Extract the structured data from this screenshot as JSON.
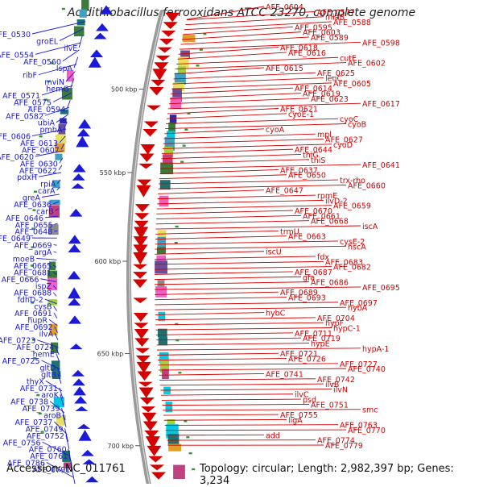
{
  "map": {
    "title": "Acidithiobacillus ferrooxidans ATCC 23270, complete genome",
    "accession": "Accession: NC_011761",
    "summary": "Topology: circular; Length: 2,982,397 bp; Genes: 3,234",
    "colors": {
      "forward": "#d40000",
      "reverse": "#1a1ad8",
      "backbone": "#9a9a9a",
      "highlight": "#ff88ff"
    },
    "ticks": [
      {
        "label": "500 kbp",
        "t": 0.17
      },
      {
        "label": "550 kbp",
        "t": 0.345
      },
      {
        "label": "600 kbp",
        "t": 0.53
      },
      {
        "label": "650 kbp",
        "t": 0.722
      },
      {
        "label": "700 kbp",
        "t": 0.915
      }
    ],
    "left_labels": [
      "AFE_0530",
      "groEL",
      "ilvE",
      "AFE_0554",
      "AFE_0560",
      "lspA",
      "ribF",
      "mviN",
      "hemG",
      "AFE_0571",
      "AFE_0575",
      "AFE_0594",
      "AFE_0582",
      "ubiA",
      "pmbA",
      "AFE_0606",
      "AFE_0613",
      "AFE_0607",
      "AFE_0620",
      "AFE_0630",
      "AFE_0622",
      "pdxH",
      "rpiA",
      "carA",
      "greA",
      "AFE_0636",
      "carB",
      "AFE_0646",
      "AFE_0655",
      "AFE_0648",
      "AFE_0649",
      "AFE_0669",
      "argA",
      "moeB",
      "AFE_0665",
      "AFE_0681",
      "AFE_0666",
      "ispZ",
      "AFE_0688",
      "fdhD-2",
      "cysB",
      "AFE_0691",
      "hupR",
      "AFE_0692",
      "ilvA",
      "AFE_0723",
      "AFE_0724",
      "hemE",
      "AFE_0725",
      "gltD",
      "gltB",
      "thyX",
      "AFE_0731",
      "aroK",
      "AFE_0738",
      "AFE_0739",
      "aroB",
      "AFE_0737",
      "AFE_0749",
      "AFE_0752",
      "AFE_0756",
      "AFE_0760",
      "AFE_0761",
      "AFE_0786",
      "AFE_0791"
    ],
    "right_labels": [
      "AFE_0604",
      "AFE_0577",
      "miaB",
      "AFE_0588",
      "AFE_0595",
      "AFE_0603",
      "AFE_0589",
      "AFE_0598",
      "AFE_0618",
      "AFE_0616",
      "cutE",
      "AFE_0602",
      "AFE_0615",
      "AFE_0625",
      "leuC",
      "AFE_0605",
      "AFE_0614",
      "AFE_0619",
      "AFE_0623",
      "AFE_0617",
      "AFE_0621",
      "cyoE-1",
      "cyoC",
      "cyoB",
      "cyoA",
      "mpl",
      "AFE_0627",
      "cyoD",
      "AFE_0644",
      "thiG",
      "thiS",
      "AFE_0641",
      "AFE_0637",
      "AFE_0650",
      "trx-rho",
      "AFE_0660",
      "AFE_0647",
      "rpmE",
      "ilvD-2",
      "AFE_0659",
      "AFE_0670",
      "AFE_0661",
      "AFE_0668",
      "iscA",
      "trmU",
      "AFE_0663",
      "cysE-2",
      "hscA",
      "iscU",
      "fdx",
      "AFE_0683",
      "AFE_0682",
      "AFE_0687",
      "gfa",
      "AFE_0686",
      "AFE_0695",
      "AFE_0689",
      "AFE_0693",
      "AFE_0697",
      "hybA",
      "hybC",
      "AFE_0704",
      "hypF",
      "hypC-1",
      "AFE_0711",
      "AFE_0719",
      "hypE",
      "hypA-1",
      "AFE_0721",
      "AFE_0726",
      "AFE_0727",
      "AFE_0740",
      "AFE_0741",
      "AFE_0742",
      "ilvB",
      "ilvN",
      "ilvC",
      "psd",
      "AFE_0751",
      "smc",
      "AFE_0755",
      "ligA",
      "AFE_0763",
      "AFE_0770",
      "add",
      "AFE_0774",
      "AFE_0779"
    ]
  }
}
